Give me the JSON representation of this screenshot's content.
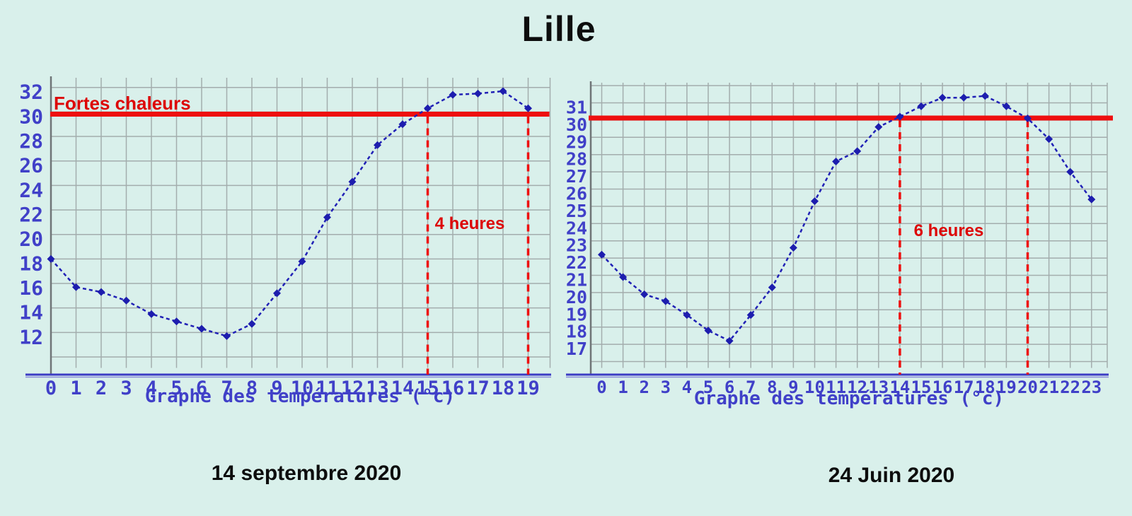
{
  "title": "Lille",
  "colors": {
    "background": "#d9f0eb",
    "curve_blue": "#2121b6",
    "marker_blue": "#1d1dae",
    "axis_text_blue": "#4040c8",
    "axis_line_blue": "#3c3cc4",
    "grid_gray": "#a3adad",
    "axis_gray": "#6f7577",
    "alert_red": "#ee0f0f",
    "red_text": "#dd0505",
    "title_black": "#0d0d0d"
  },
  "chart_data": [
    {
      "type": "line",
      "name": "left-chart",
      "date_label": "14 septembre 2020",
      "axis_title": "Graphe des températures (°c)",
      "threshold": {
        "value": 30,
        "label": "Fortes chaleurs"
      },
      "duration": {
        "label": "4 heures",
        "from_hour": 15,
        "to_hour": 19
      },
      "x": [
        0,
        1,
        2,
        3,
        4,
        5,
        6,
        7,
        8,
        9,
        10,
        11,
        12,
        13,
        14,
        15,
        16,
        17,
        18,
        19
      ],
      "y": [
        18.0,
        15.7,
        15.3,
        14.6,
        13.5,
        12.9,
        12.3,
        11.7,
        12.7,
        15.2,
        17.8,
        21.4,
        24.3,
        27.3,
        29.0,
        30.3,
        31.4,
        31.5,
        31.7,
        30.3
      ],
      "y_tick_labels": [
        32,
        30,
        28,
        26,
        24,
        22,
        20,
        18,
        16,
        14,
        12
      ],
      "xlim": [
        0,
        19
      ],
      "ylim": [
        10,
        33
      ],
      "grid": true,
      "legend": "none"
    },
    {
      "type": "line",
      "name": "right-chart",
      "date_label": "24 Juin 2020",
      "axis_title": "Graphe des températures (°c)",
      "threshold": {
        "value": 30,
        "label": ""
      },
      "duration": {
        "label": "6 heures",
        "from_hour": 14,
        "to_hour": 20
      },
      "x": [
        0,
        1,
        2,
        3,
        4,
        5,
        6,
        7,
        8,
        9,
        10,
        11,
        12,
        13,
        14,
        15,
        16,
        17,
        18,
        19,
        20,
        21,
        22,
        23
      ],
      "y": [
        22.2,
        20.9,
        19.9,
        19.5,
        18.7,
        17.8,
        17.2,
        18.7,
        20.3,
        22.6,
        25.3,
        27.6,
        28.2,
        29.6,
        30.2,
        30.8,
        31.3,
        31.3,
        31.4,
        30.8,
        30.1,
        28.9,
        27.0,
        25.4
      ],
      "y_tick_labels": [
        31,
        30,
        29,
        28,
        27,
        26,
        25,
        24,
        23,
        22,
        21,
        20,
        19,
        18,
        17
      ],
      "xlim": [
        0,
        23
      ],
      "ylim": [
        16,
        33
      ],
      "grid": true,
      "legend": "none"
    }
  ]
}
